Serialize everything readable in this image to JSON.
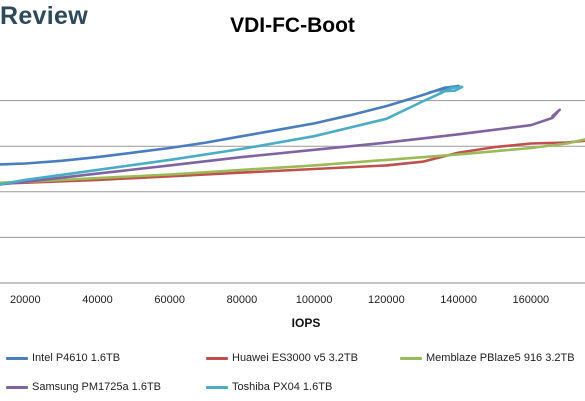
{
  "brand": {
    "logo_text": "Review"
  },
  "chart_data": {
    "type": "line",
    "title": "VDI-FC-Boot",
    "xlabel": "IOPS",
    "ylabel": "",
    "xlim": [
      13000,
      175000
    ],
    "ylim": [
      0,
      5
    ],
    "x_ticks": [
      20000,
      40000,
      60000,
      80000,
      100000,
      120000,
      140000,
      160000
    ],
    "y_gridlines": [
      0,
      1,
      2,
      3,
      4
    ],
    "grid": true,
    "legend_position": "bottom",
    "series": [
      {
        "name": "Intel P4610 1.6TB",
        "color": "#4a7dbf",
        "points": [
          [
            13000,
            2.6
          ],
          [
            20000,
            2.62
          ],
          [
            30000,
            2.68
          ],
          [
            40000,
            2.76
          ],
          [
            50000,
            2.86
          ],
          [
            60000,
            2.96
          ],
          [
            70000,
            3.08
          ],
          [
            80000,
            3.22
          ],
          [
            90000,
            3.36
          ],
          [
            100000,
            3.5
          ],
          [
            110000,
            3.68
          ],
          [
            120000,
            3.88
          ],
          [
            130000,
            4.12
          ],
          [
            136000,
            4.28
          ],
          [
            140000,
            4.32
          ],
          [
            137000,
            4.28
          ],
          [
            132000,
            4.18
          ]
        ]
      },
      {
        "name": "Huawei ES3000 v5 3.2TB",
        "color": "#c0504d",
        "points": [
          [
            13000,
            2.18
          ],
          [
            20000,
            2.2
          ],
          [
            40000,
            2.26
          ],
          [
            60000,
            2.34
          ],
          [
            80000,
            2.42
          ],
          [
            100000,
            2.5
          ],
          [
            120000,
            2.58
          ],
          [
            130000,
            2.66
          ],
          [
            140000,
            2.86
          ],
          [
            150000,
            2.98
          ],
          [
            160000,
            3.06
          ],
          [
            170000,
            3.08
          ],
          [
            175000,
            3.12
          ]
        ]
      },
      {
        "name": "Memblaze PBlaze5 916 3.2TB",
        "color": "#9bbb59",
        "points": [
          [
            13000,
            2.2
          ],
          [
            20000,
            2.22
          ],
          [
            40000,
            2.3
          ],
          [
            60000,
            2.38
          ],
          [
            80000,
            2.48
          ],
          [
            100000,
            2.58
          ],
          [
            120000,
            2.7
          ],
          [
            140000,
            2.82
          ],
          [
            160000,
            2.96
          ],
          [
            170000,
            3.06
          ],
          [
            175000,
            3.15
          ]
        ]
      },
      {
        "name": "Samsung PM1725a 1.6TB",
        "color": "#8064a2",
        "points": [
          [
            13000,
            2.16
          ],
          [
            20000,
            2.22
          ],
          [
            40000,
            2.4
          ],
          [
            60000,
            2.58
          ],
          [
            80000,
            2.76
          ],
          [
            100000,
            2.92
          ],
          [
            120000,
            3.08
          ],
          [
            140000,
            3.26
          ],
          [
            160000,
            3.46
          ],
          [
            166000,
            3.62
          ],
          [
            168000,
            3.8
          ],
          [
            166000,
            3.66
          ]
        ]
      },
      {
        "name": "Toshiba PX04 1.6TB",
        "color": "#4bacc6",
        "points": [
          [
            13000,
            2.16
          ],
          [
            20000,
            2.26
          ],
          [
            40000,
            2.48
          ],
          [
            60000,
            2.7
          ],
          [
            80000,
            2.94
          ],
          [
            100000,
            3.22
          ],
          [
            120000,
            3.6
          ],
          [
            130000,
            3.98
          ],
          [
            135000,
            4.16
          ],
          [
            138000,
            4.28
          ],
          [
            141000,
            4.3
          ],
          [
            139000,
            4.22
          ],
          [
            135000,
            4.2
          ]
        ]
      }
    ]
  }
}
